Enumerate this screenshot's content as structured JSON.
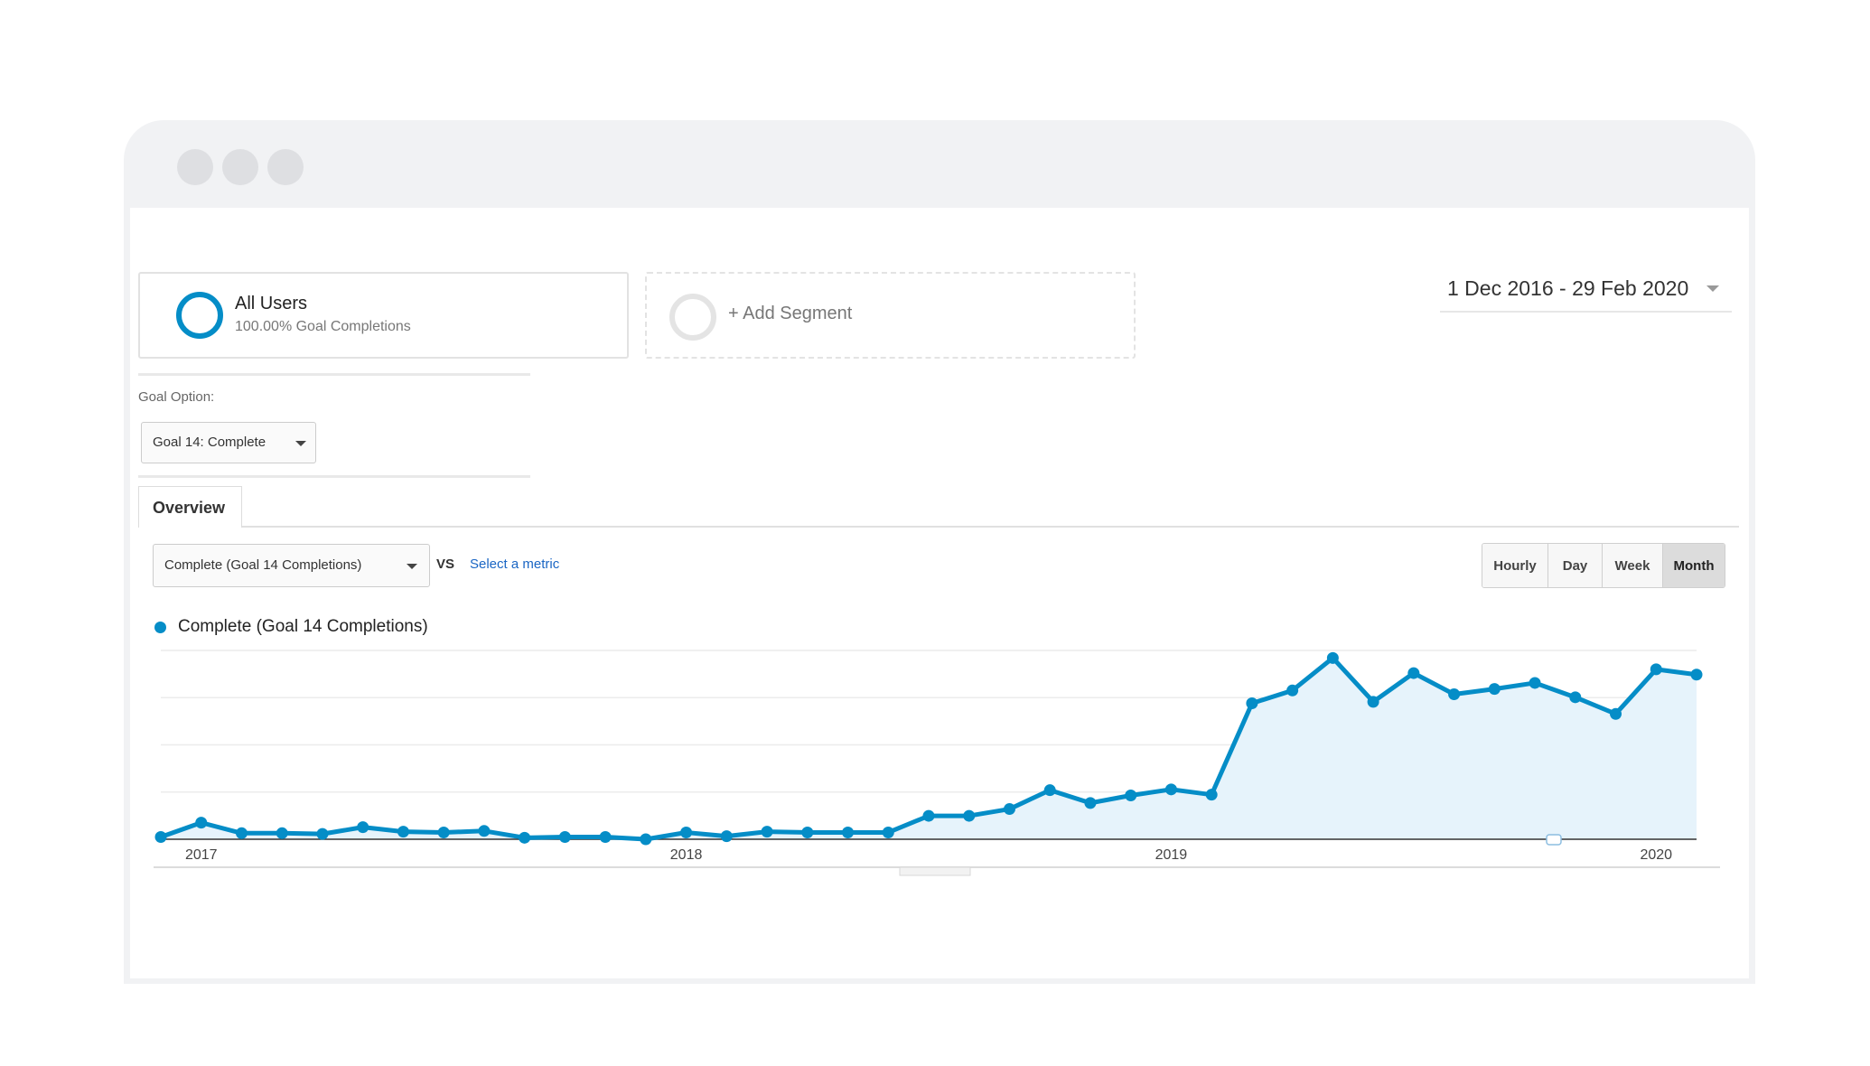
{
  "segments": {
    "active": {
      "name": "All Users",
      "subtitle": "100.00% Goal Completions"
    },
    "add_label": "+ Add Segment"
  },
  "date_range": "1 Dec 2016 - 29 Feb 2020",
  "goal": {
    "label": "Goal Option:",
    "selected": "Goal 14: Complete"
  },
  "tabs": [
    {
      "label": "Overview"
    }
  ],
  "metric": {
    "selected": "Complete (Goal 14 Completions)",
    "vs_label": "VS",
    "compare_link": "Select a metric"
  },
  "granularity": {
    "options": [
      "Hourly",
      "Day",
      "Week",
      "Month"
    ],
    "selected": "Month"
  },
  "colors": {
    "series": "#058dc7",
    "fill": "#e6f3fb",
    "grid": "#ececec"
  },
  "chart_data": {
    "type": "area",
    "series": [
      {
        "name": "Complete (Goal 14 Completions)",
        "values": [
          3,
          22,
          8,
          8,
          7,
          16,
          10,
          9,
          11,
          2,
          3,
          3,
          0,
          9,
          4,
          10,
          9,
          9,
          9,
          31,
          31,
          40,
          65,
          48,
          58,
          66,
          59,
          180,
          197,
          240,
          182,
          220,
          192,
          199,
          207,
          188,
          166,
          225,
          218
        ]
      }
    ],
    "x": [
      "2016-12",
      "2017-01",
      "2017-02",
      "2017-03",
      "2017-04",
      "2017-05",
      "2017-06",
      "2017-07",
      "2017-08",
      "2017-09",
      "2017-10",
      "2017-11",
      "2017-12",
      "2018-01",
      "2018-02",
      "2018-03",
      "2018-04",
      "2018-05",
      "2018-06",
      "2018-07",
      "2018-08",
      "2018-09",
      "2018-10",
      "2018-11",
      "2018-12",
      "2019-01",
      "2019-02",
      "2019-03",
      "2019-04",
      "2019-05",
      "2019-06",
      "2019-07",
      "2019-08",
      "2019-09",
      "2019-10",
      "2019-11",
      "2019-12",
      "2020-01",
      "2020-02"
    ],
    "x_tick_labels": [
      "2017",
      "2018",
      "2019",
      "2020"
    ],
    "ylim": [
      0,
      250
    ],
    "grid": true
  }
}
